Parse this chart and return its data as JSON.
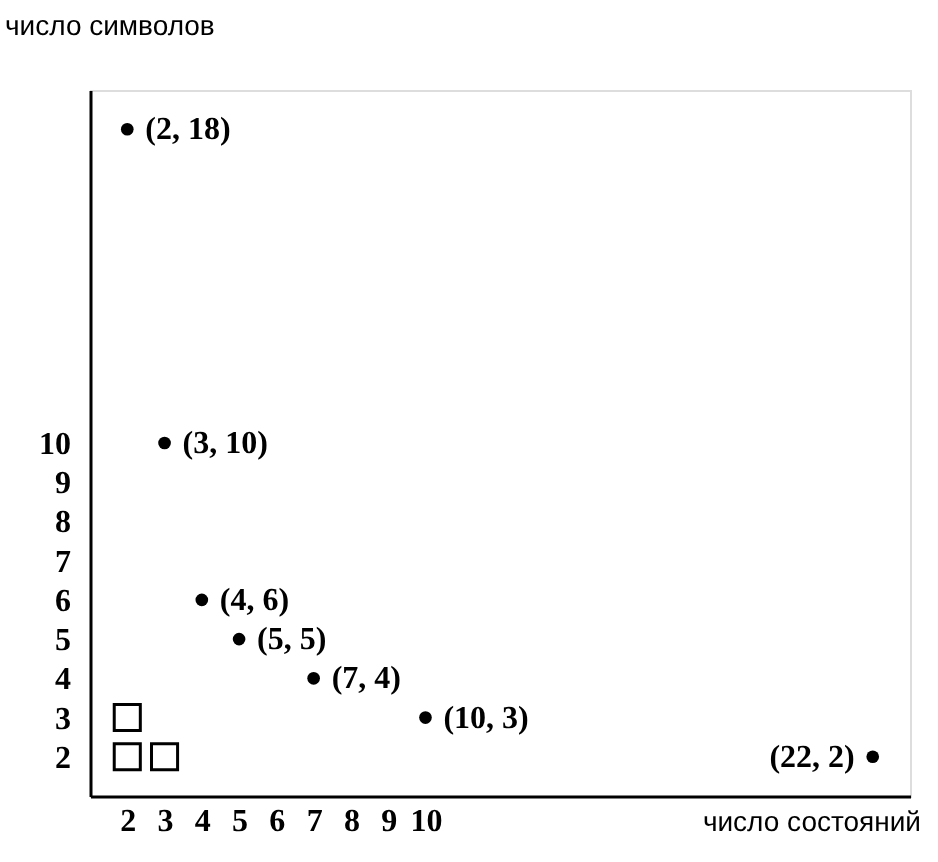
{
  "chart_data": {
    "type": "scatter",
    "xlabel": "число состояний",
    "ylabel": "число символов",
    "xlim": [
      1,
      23
    ],
    "ylim": [
      1,
      19
    ],
    "xticks": [
      2,
      3,
      4,
      5,
      6,
      7,
      8,
      9,
      10
    ],
    "yticks": [
      2,
      3,
      4,
      5,
      6,
      7,
      8,
      9,
      10
    ],
    "series": [
      {
        "marker": "circle",
        "color": "#000000",
        "x": [
          2,
          3,
          4,
          5,
          7,
          10,
          22
        ],
        "values": [
          18,
          10,
          6,
          5,
          4,
          3,
          2
        ],
        "value_labels": [
          "(2, 18)",
          "(3, 10)",
          "(4, 6)",
          "(5, 5)",
          "(7, 4)",
          "(10, 3)",
          "(22, 2)"
        ]
      },
      {
        "marker": "square",
        "color": "#000000",
        "x": [
          2,
          3,
          2
        ],
        "values": [
          2,
          2,
          3
        ]
      }
    ]
  }
}
